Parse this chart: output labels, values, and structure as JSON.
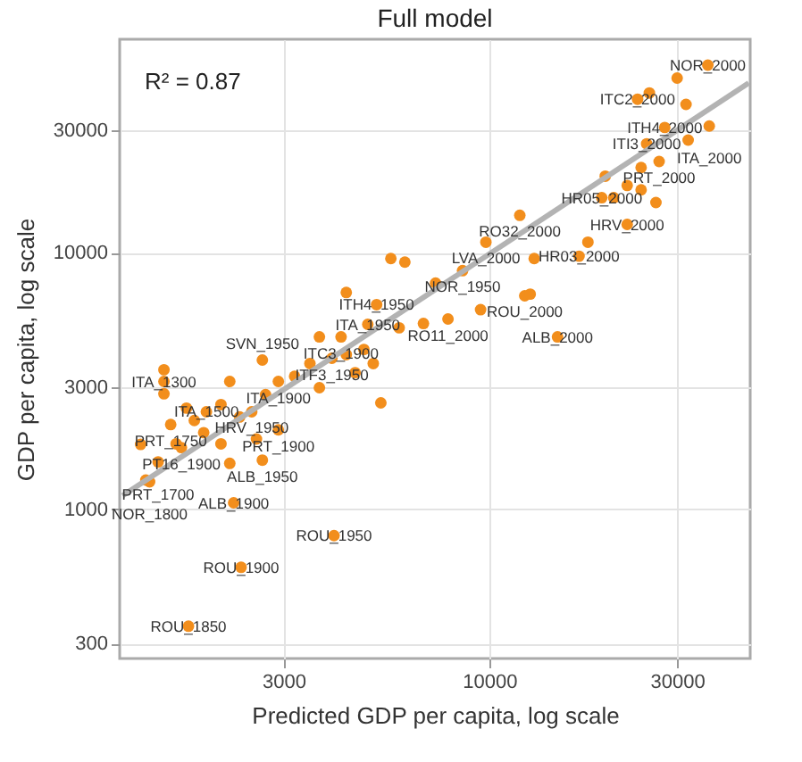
{
  "chart_data": {
    "type": "scatter",
    "title": "Full model",
    "xlabel": "Predicted GDP per capita, log scale",
    "ylabel": "GDP per capita, log scale",
    "log": "xy",
    "grid": true,
    "xlim": [
      1150,
      46000
    ],
    "ylim": [
      262,
      68000
    ],
    "xticks": [
      3000,
      10000,
      30000
    ],
    "yticks": [
      300,
      1000,
      3000,
      10000,
      30000
    ],
    "series": [
      {
        "type": "scatter",
        "marker": "circle",
        "color": "#f28e1c",
        "x": [
          35900,
          23800,
          27900,
          36200,
          25100,
          27000,
          19300,
          11950,
          22400,
          9800,
          16900,
          8550,
          12300,
          7850,
          14900,
          5170,
          4910,
          4200,
          3980,
          2650,
          2910,
          2490,
          2910,
          1490,
          1910,
          1550,
          1650,
          1440,
          2650,
          1370,
          2240,
          4030,
          2340,
          1720,
          30000,
          31600,
          25500,
          32000,
          24300,
          22400,
          24300,
          19700,
          26500,
          20700,
          17800,
          13000,
          12700,
          9500,
          5620,
          6100,
          7300,
          6800,
          4330,
          5900,
          4800,
          3700,
          4330,
          3500,
          5070,
          3200,
          3700,
          4560,
          5300,
          2190,
          2080,
          2320,
          2700,
          2560,
          1490,
          1490,
          1700,
          1780,
          1300,
          2080,
          2190,
          1340,
          1600,
          1880
        ],
        "values": [
          53900,
          39700,
          30800,
          31200,
          26600,
          22700,
          16400,
          14000,
          12900,
          11000,
          9700,
          8520,
          6800,
          5520,
          4700,
          6280,
          5260,
          4700,
          3880,
          3820,
          3150,
          2400,
          2040,
          3150,
          2400,
          2140,
          1740,
          1530,
          1555,
          1280,
          1060,
          790,
          594,
          350,
          48000,
          37900,
          42000,
          27500,
          21500,
          18300,
          17600,
          19900,
          15700,
          16400,
          11000,
          9500,
          6900,
          6000,
          9500,
          9200,
          7620,
          5300,
          7000,
          5100,
          4200,
          4700,
          4010,
          3700,
          3700,
          3300,
          2980,
          3410,
          2600,
          3150,
          2560,
          2290,
          2800,
          1880,
          3500,
          2820,
          2480,
          2220,
          1790,
          1800,
          1510,
          1300,
          1800,
          1990
        ]
      },
      {
        "type": "line",
        "color": "#b3b3b3",
        "x": [
          1170,
          45600
        ],
        "values": [
          1130,
          45900
        ]
      }
    ],
    "annotations": [
      "R² = 0.87",
      {
        "text": "NOR_2000",
        "x": 35900,
        "y": 53900
      },
      {
        "text": "ITC2_2000",
        "x": 23800,
        "y": 39700
      },
      {
        "text": "ITH4_2000",
        "x": 27900,
        "y": 30800
      },
      {
        "text": "ITA_2000",
        "x": 36200,
        "y": 31200
      },
      {
        "text": "ITI3_2000",
        "x": 25100,
        "y": 26600
      },
      {
        "text": "PRT_2000",
        "x": 27000,
        "y": 22700
      },
      {
        "text": "HR05_2000",
        "x": 19300,
        "y": 16400
      },
      {
        "text": "RO32_2000",
        "x": 11950,
        "y": 14000
      },
      {
        "text": "HRV_2000",
        "x": 22400,
        "y": 12900
      },
      {
        "text": "LVA_2000",
        "x": 9800,
        "y": 11000
      },
      {
        "text": "HR03_2000",
        "x": 16900,
        "y": 9700
      },
      {
        "text": "NOR_1950",
        "x": 8550,
        "y": 8520
      },
      {
        "text": "ROU_2000",
        "x": 12300,
        "y": 6800
      },
      {
        "text": "RO11_2000",
        "x": 7850,
        "y": 5520
      },
      {
        "text": "ALB_2000",
        "x": 14900,
        "y": 4700
      },
      {
        "text": "ITH4_1950",
        "x": 5170,
        "y": 6280
      },
      {
        "text": "ITA_1950",
        "x": 4910,
        "y": 5260
      },
      {
        "text": "ITC3_1900",
        "x": 4200,
        "y": 4700
      },
      {
        "text": "ITF3_1950",
        "x": 3980,
        "y": 3880
      },
      {
        "text": "SVN_1950",
        "x": 2650,
        "y": 3820
      },
      {
        "text": "ITA_1900",
        "x": 2910,
        "y": 3150
      },
      {
        "text": "HRV_1950",
        "x": 2490,
        "y": 2400
      },
      {
        "text": "PRT_1900",
        "x": 2910,
        "y": 2040
      },
      {
        "text": "ITA_1300",
        "x": 1490,
        "y": 3150
      },
      {
        "text": "ITA_1500",
        "x": 1910,
        "y": 2400
      },
      {
        "text": "PRT_1750",
        "x": 1550,
        "y": 2140
      },
      {
        "text": "PT16_1900",
        "x": 1650,
        "y": 1740
      },
      {
        "text": "PRT_1700",
        "x": 1440,
        "y": 1530
      },
      {
        "text": "ALB_1950",
        "x": 2650,
        "y": 1555
      },
      {
        "text": "NOR_1800",
        "x": 1370,
        "y": 1280
      },
      {
        "text": "ALB_1900",
        "x": 2240,
        "y": 1060
      },
      {
        "text": "ROU_1950",
        "x": 4030,
        "y": 790
      },
      {
        "text": "ROU_1900",
        "x": 2340,
        "y": 594
      },
      {
        "text": "ROU_1850",
        "x": 1720,
        "y": 350
      }
    ]
  }
}
